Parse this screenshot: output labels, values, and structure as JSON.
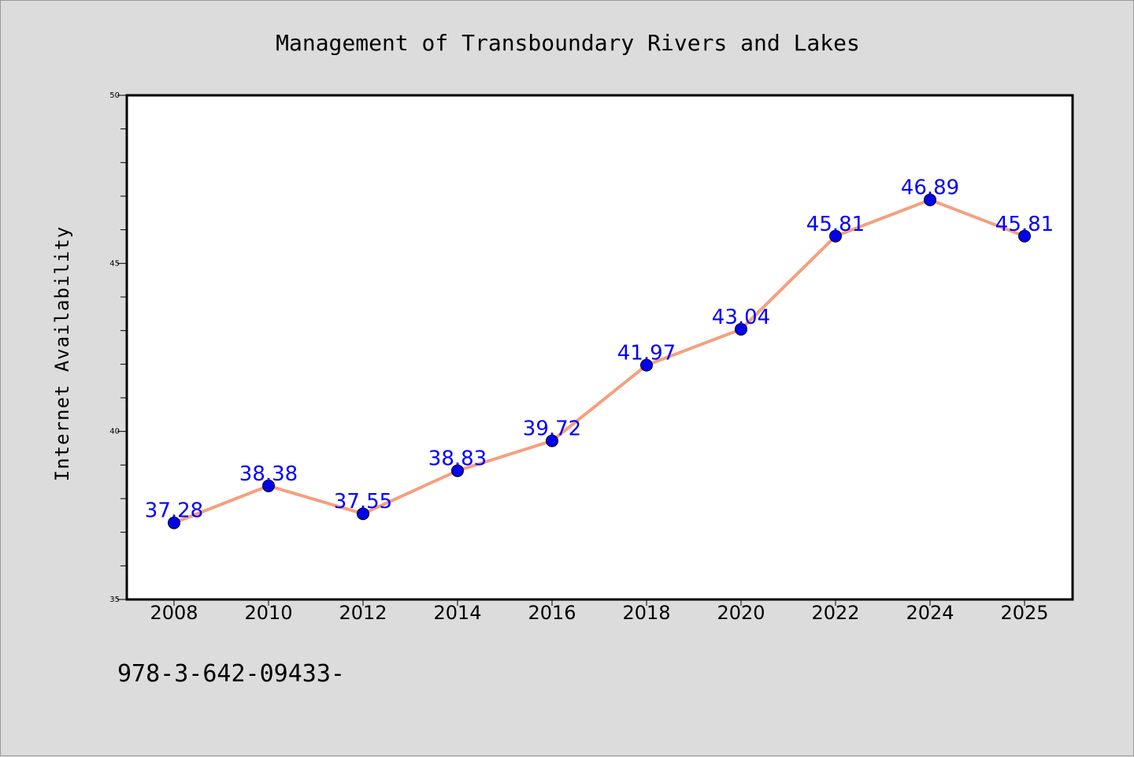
{
  "chart_data": {
    "type": "line",
    "title": "Management of Transboundary Rivers and Lakes",
    "xlabel": "",
    "ylabel": "Internet Availability",
    "categories": [
      "2008",
      "2010",
      "2012",
      "2014",
      "2016",
      "2018",
      "2020",
      "2022",
      "2024",
      "2025"
    ],
    "series": [
      {
        "values": [
          37.28,
          38.38,
          37.55,
          38.83,
          39.72,
          41.97,
          43.04,
          45.81,
          46.89,
          45.81
        ],
        "data_labels": [
          "37.28",
          "38.38",
          "37.55",
          "38.83",
          "39.72",
          "41.97",
          "43.04",
          "45.81",
          "46.89",
          "45.81"
        ],
        "line_color": "#f4a07f",
        "marker_color": "#0000ee"
      }
    ],
    "ylim": [
      35,
      50
    ],
    "y_major_ticks": [
      "35",
      "40",
      "45",
      "50"
    ],
    "grid": false,
    "label_color": "#0000ff"
  },
  "footnote": "978-3-642-09433-",
  "colors": {
    "background": "#dcdcdc",
    "plot_background": "#ffffff",
    "axis": "#000000"
  }
}
